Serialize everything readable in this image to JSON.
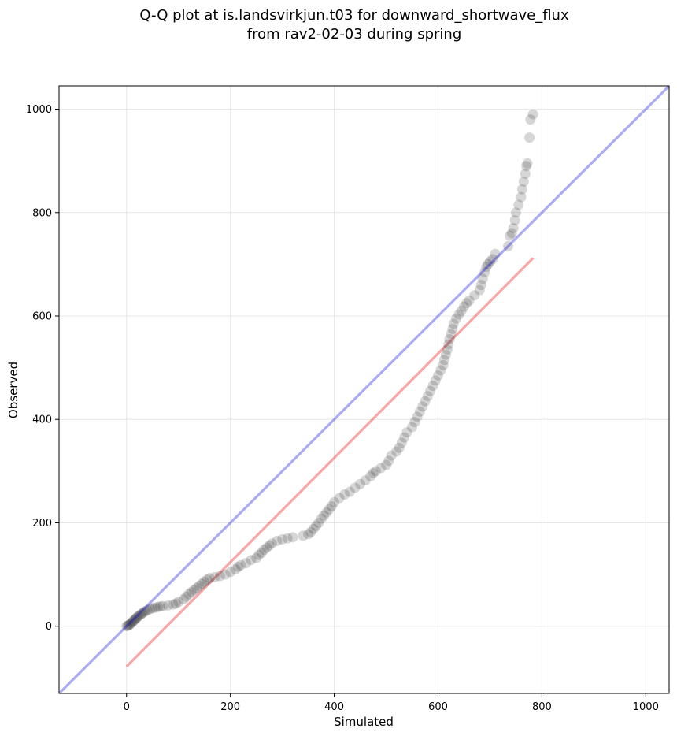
{
  "chart_data": {
    "type": "scatter",
    "title": "Q-Q plot at is.landsvirkjun.t03 for downward_shortwave_flux",
    "subtitle": "from rav2-02-03 during spring",
    "xlabel": "Simulated",
    "ylabel": "Observed",
    "xlim": [
      -130,
      1045
    ],
    "ylim": [
      -130,
      1045
    ],
    "xticks": [
      0,
      200,
      400,
      600,
      800,
      1000
    ],
    "yticks": [
      0,
      200,
      400,
      600,
      800,
      1000
    ],
    "grid": true,
    "legend": "none",
    "colors": {
      "points": "#333333",
      "identity_line": "#0000dd",
      "fit_line": "#ee0000"
    },
    "series": [
      {
        "type": "scatter",
        "x": [
          0,
          2,
          4,
          6,
          8,
          10,
          12,
          14,
          16,
          18,
          20,
          22,
          25,
          28,
          30,
          33,
          36,
          40,
          45,
          50,
          55,
          60,
          65,
          70,
          80,
          90,
          95,
          100,
          110,
          115,
          120,
          125,
          130,
          135,
          140,
          145,
          150,
          155,
          160,
          170,
          180,
          190,
          200,
          210,
          215,
          220,
          230,
          240,
          250,
          255,
          260,
          265,
          270,
          275,
          280,
          290,
          300,
          310,
          320,
          340,
          350,
          355,
          360,
          365,
          370,
          375,
          380,
          385,
          390,
          395,
          400,
          410,
          420,
          430,
          440,
          450,
          460,
          470,
          475,
          480,
          490,
          500,
          505,
          510,
          520,
          525,
          530,
          535,
          540,
          550,
          555,
          560,
          565,
          570,
          575,
          580,
          585,
          590,
          595,
          600,
          605,
          610,
          612,
          615,
          618,
          620,
          622,
          625,
          628,
          630,
          635,
          640,
          645,
          650,
          655,
          660,
          670,
          680,
          683,
          686,
          690,
          693,
          696,
          700,
          705,
          710,
          735,
          738,
          742,
          745,
          748,
          750,
          755,
          760,
          762,
          765,
          768,
          770,
          772,
          776,
          778,
          783
        ],
        "y": [
          0,
          1,
          2,
          3,
          5,
          7,
          9,
          11,
          13,
          15,
          17,
          19,
          21,
          23,
          25,
          27,
          29,
          31,
          33,
          35,
          36,
          37,
          38,
          39,
          40,
          42,
          44,
          47,
          52,
          57,
          62,
          66,
          70,
          74,
          78,
          82,
          86,
          90,
          93,
          95,
          97,
          100,
          105,
          110,
          115,
          118,
          122,
          128,
          132,
          138,
          142,
          148,
          152,
          156,
          160,
          165,
          168,
          170,
          172,
          175,
          178,
          182,
          188,
          194,
          200,
          208,
          214,
          220,
          226,
          232,
          240,
          248,
          255,
          260,
          268,
          275,
          282,
          290,
          296,
          300,
          306,
          312,
          320,
          330,
          338,
          345,
          355,
          365,
          375,
          385,
          395,
          405,
          415,
          425,
          435,
          445,
          455,
          465,
          475,
          485,
          495,
          505,
          515,
          525,
          535,
          545,
          555,
          565,
          575,
          585,
          595,
          603,
          610,
          618,
          625,
          630,
          640,
          650,
          660,
          672,
          685,
          695,
          700,
          705,
          710,
          720,
          735,
          755,
          760,
          770,
          785,
          800,
          815,
          830,
          845,
          860,
          875,
          890,
          895,
          945,
          980,
          990
        ]
      },
      {
        "type": "line",
        "name": "identity",
        "x": [
          -130,
          1045
        ],
        "y": [
          -130,
          1045
        ]
      },
      {
        "type": "line",
        "name": "fit",
        "x": [
          0,
          783
        ],
        "y": [
          -78,
          712
        ]
      }
    ]
  }
}
